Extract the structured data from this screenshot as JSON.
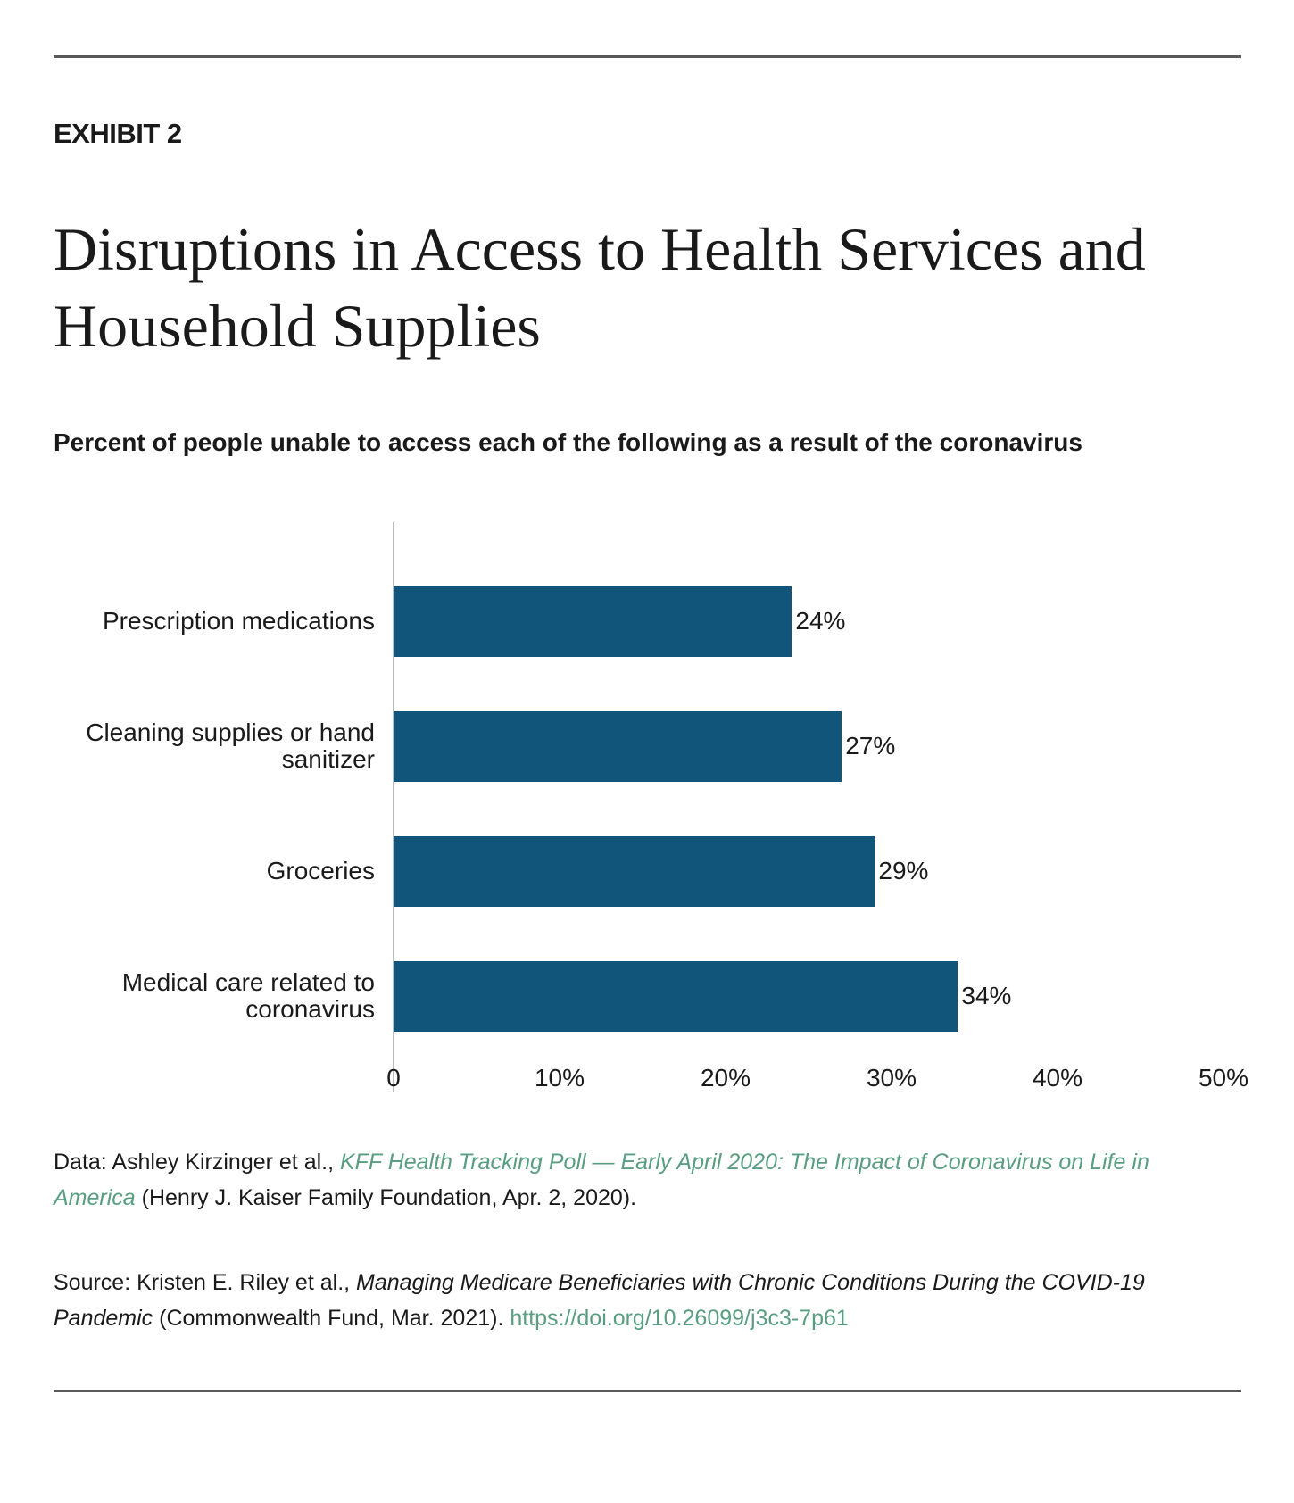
{
  "exhibit": "EXHIBIT 2",
  "chart_data": {
    "type": "bar",
    "orientation": "horizontal",
    "title": "Disruptions in Access to Health Services and Household Supplies",
    "subtitle": "Percent of people unable to access each of the following as a result of the coronavirus",
    "categories": [
      "Prescription medications",
      "Cleaning supplies or hand sanitizer",
      "Groceries",
      "Medical care related to coronavirus"
    ],
    "values": [
      24,
      27,
      29,
      34
    ],
    "value_labels": [
      "24%",
      "27%",
      "29%",
      "34%"
    ],
    "color": "#12557a",
    "xlim": [
      0,
      50
    ],
    "xticks": [
      0,
      {
        "value": 10,
        "label": "10%"
      },
      {
        "value": 20,
        "label": "20%"
      },
      {
        "value": 30,
        "label": "30%"
      },
      {
        "value": 40,
        "label": "40%"
      },
      {
        "value": 50,
        "label": "50%"
      }
    ]
  },
  "notes": {
    "data": {
      "prefix": "Data: Ashley Kirzinger et al., ",
      "link": "KFF Health Tracking Poll — Early April 2020: The Impact of Coronavirus on Life in America",
      "suffix": " (Henry J. Kaiser Family Foundation, Apr. 2, 2020)."
    },
    "source": {
      "prefix": "Source: Kristen E. Riley et al., ",
      "title": "Managing Medicare Beneficiaries with Chronic Conditions During the COVID-19 Pandemic",
      "suffix": " (Commonwealth Fund, Mar. 2021). ",
      "link": "https://doi.org/10.26099/j3c3-7p61"
    }
  }
}
